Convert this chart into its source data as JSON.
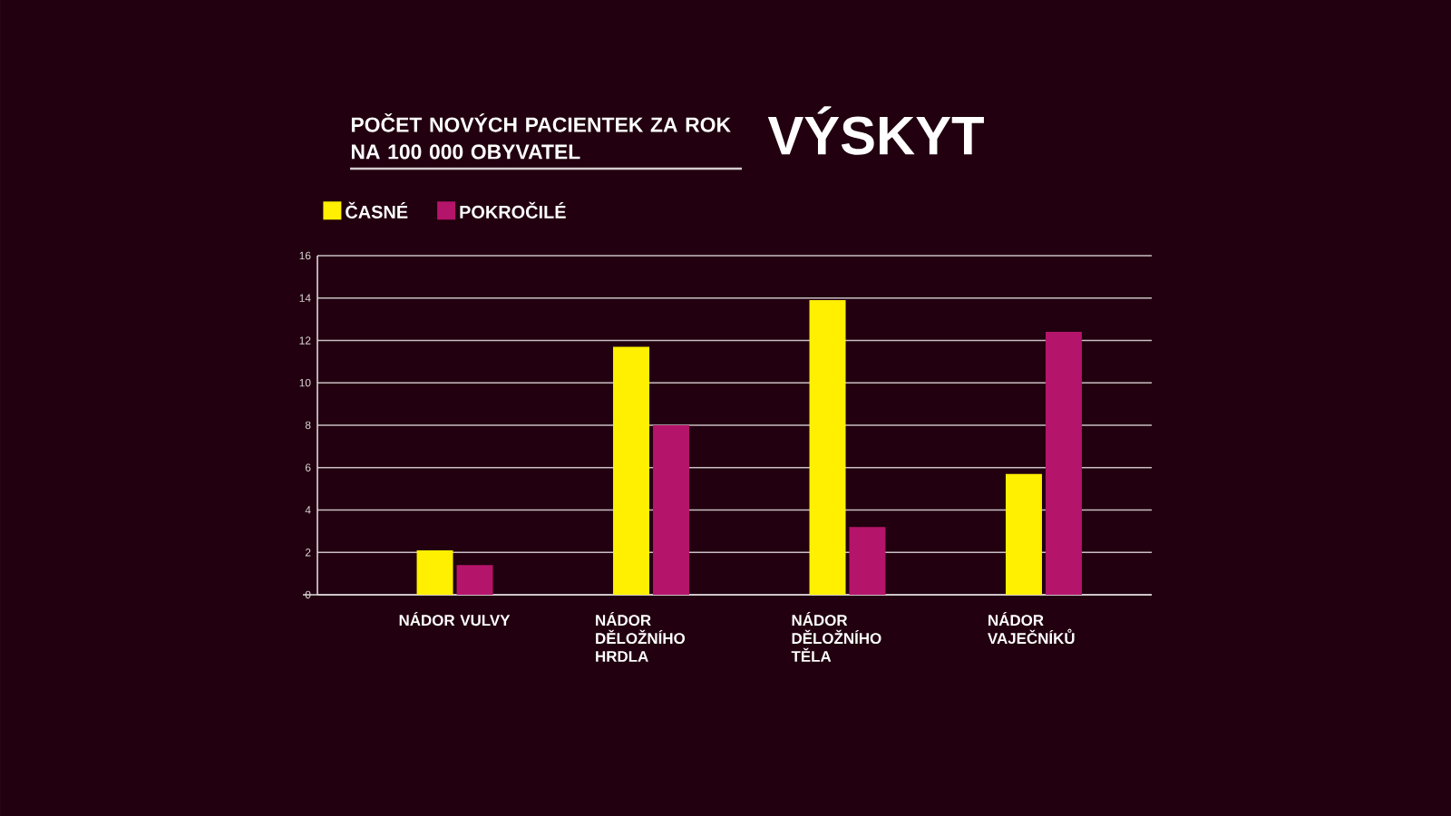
{
  "chart_data": {
    "type": "bar",
    "title": "VÝSKYT",
    "subtitle": "POČET NOVÝCH PACIENTEK ZA ROK NA 100 000 OBYVATEL",
    "categories": [
      "NÁDOR VULVY",
      "NÁDOR DĚLOŽNÍHO HRDLA",
      "NÁDOR DĚLOŽNÍHO TĚLA",
      "NÁDOR VAJEČNÍKŮ"
    ],
    "series": [
      {
        "name": "ČASNÉ",
        "color": "#ffef00",
        "values": [
          2.1,
          11.7,
          13.9,
          5.7
        ]
      },
      {
        "name": "POKROČILÉ",
        "color": "#b5146b",
        "values": [
          1.4,
          8.0,
          3.2,
          12.4
        ]
      }
    ],
    "ylim": [
      0,
      16
    ],
    "yticks": [
      0,
      2,
      4,
      6,
      8,
      10,
      12,
      14,
      16
    ],
    "grid": "y",
    "legend": "top left"
  }
}
